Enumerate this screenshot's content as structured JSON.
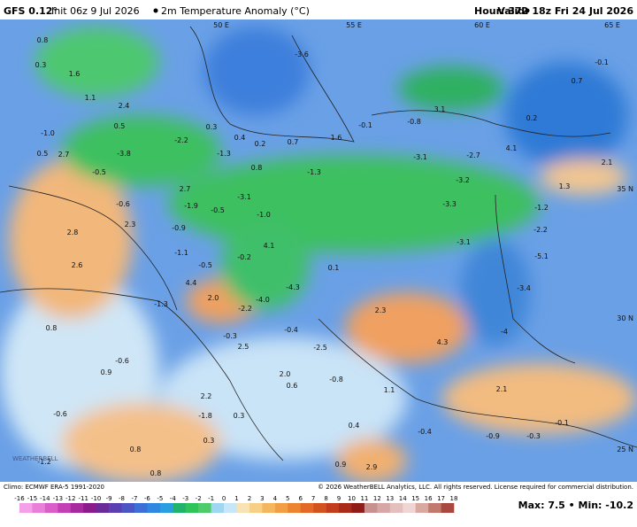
{
  "header": {
    "model": "GFS 0.12°",
    "init": "Init 06z 9 Jul 2026",
    "product": "2m Temperature Anomaly (°C)",
    "hour": "Hour: 372",
    "valid": "Valid: 18z Fri 24 Jul 2026"
  },
  "footer": {
    "climo": "Climo: ECMWF ERA-5 1991-2020",
    "copyright": "© 2026 WeatherBELL Analytics, LLC. All rights reserved. License required for commercial distribution.",
    "maxmin": "Max: 7.5 • Min: -10.2",
    "logo": "WEATHERBELL"
  },
  "colorbar": {
    "labels": [
      "-16",
      "-15",
      "-14",
      "-13",
      "-12",
      "-11",
      "-10",
      "-9",
      "-8",
      "-7",
      "-6",
      "-5",
      "-4",
      "-3",
      "-2",
      "-1",
      "0",
      "1",
      "2",
      "3",
      "4",
      "5",
      "6",
      "7",
      "8",
      "9",
      "10",
      "11",
      "12",
      "13",
      "14",
      "15",
      "16",
      "17",
      "18"
    ],
    "colors": [
      "#f3a0e8",
      "#e87fd9",
      "#d95ec8",
      "#c23fb5",
      "#a8289f",
      "#8b1a8c",
      "#6a2a9a",
      "#5a3fb0",
      "#4b56c4",
      "#3d6fd6",
      "#2f87e0",
      "#2a9ee0",
      "#1fb36e",
      "#2fc35a",
      "#4ecc6a",
      "#9fd6f0",
      "#c7e6f7",
      "#f7e3b5",
      "#f7cf86",
      "#f4b760",
      "#f19e45",
      "#ec8431",
      "#e26a26",
      "#d3531f",
      "#c23d1b",
      "#a92a18",
      "#8f1c17",
      "#c8908f",
      "#d6a7a6",
      "#e3bfbe",
      "#efd6d5",
      "#d7a9a0",
      "#c27a6e",
      "#a9483e"
    ]
  },
  "geo_labels": [
    "50 E",
    "55 E",
    "60 E",
    "65 E",
    "35 N",
    "30 N",
    "25 N"
  ],
  "map_labels": [
    "0.8",
    "0.3",
    "1.6",
    "1.1",
    "2.4",
    "-1.0",
    "0.5",
    "0.3",
    "-2.2",
    "0.4",
    "0.2",
    "0.7",
    "1.6",
    "-0.1",
    "-0.8",
    "3.1",
    "0.2",
    "0.7",
    "-0.1",
    "-3.6",
    "0.5",
    "2.7",
    "-3.8",
    "-1.3",
    "0.8",
    "-1.3",
    "-3.1",
    "-2.7",
    "4.1",
    "2.1",
    "1.3",
    "-0.5",
    "2.7",
    "-3.1",
    "-1.9",
    "-0.5",
    "-1.0",
    "-3.2",
    "-3.3",
    "-1.2",
    "-0.6",
    "2.3",
    "-0.9",
    "-2.2",
    "-3.1",
    "4.1",
    "-1.1",
    "-0.2",
    "2.8",
    "2.6",
    "-0.5",
    "4.4",
    "0.1",
    "-5.1",
    "-3.4",
    "-4.3",
    "2.0",
    "-4.0",
    "-1.3",
    "-2.2",
    "2.3",
    "0.8",
    "-0.4",
    "-4",
    "-0.3",
    "4.3",
    "2.5",
    "-2.5",
    "-0.6",
    "0.9",
    "2.0",
    "0.6",
    "-0.8",
    "1.1",
    "2.1",
    "2.2",
    "-0.6",
    "0.3",
    "-1.8",
    "-0.1",
    "0.3",
    "0.4",
    "-0.4",
    "-0.9",
    "-0.3",
    "0.8",
    "-1.2",
    "0.8",
    "0.9",
    "2.9"
  ]
}
